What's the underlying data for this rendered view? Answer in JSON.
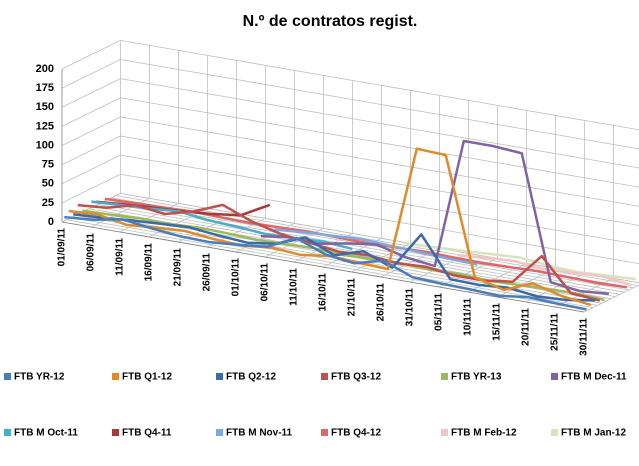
{
  "chart_data": {
    "type": "line",
    "title": "N.º de contratos regist.",
    "categories": [
      "01/09/11",
      "06/09/11",
      "11/09/11",
      "16/09/11",
      "21/09/11",
      "26/09/11",
      "01/10/11",
      "06/10/11",
      "11/10/11",
      "16/10/11",
      "21/10/11",
      "26/10/11",
      "31/10/11",
      "05/11/11",
      "10/11/11",
      "15/11/11",
      "20/11/11",
      "25/11/11",
      "30/11/11"
    ],
    "ylim": [
      0,
      200
    ],
    "yticks": [
      0,
      25,
      50,
      75,
      100,
      125,
      150,
      175,
      200
    ],
    "grid": true,
    "series": [
      {
        "name": "FTB YR-12",
        "color": "#4a7ebb",
        "values": [
          5,
          8,
          15,
          10,
          6,
          5,
          8,
          12,
          30,
          15,
          10,
          20,
          5,
          3,
          2,
          0,
          5,
          3,
          2
        ]
      },
      {
        "name": "FTB Q1-12",
        "color": "#e08a2c",
        "values": [
          10,
          12,
          5,
          8,
          10,
          6,
          4,
          8,
          5,
          10,
          8,
          6,
          170,
          168,
          15,
          5,
          20,
          10,
          5
        ]
      },
      {
        "name": "FTB Q2-12",
        "color": "#3c6aa8",
        "values": [
          3,
          5,
          8,
          10,
          12,
          8,
          5,
          10,
          25,
          8,
          20,
          5,
          55,
          3,
          2,
          5,
          0,
          2,
          8
        ]
      },
      {
        "name": "FTB Q3-12",
        "color": "#c0504d",
        "values": [
          12,
          15,
          25,
          20,
          30,
          45,
          30,
          20,
          15,
          10,
          12,
          8,
          10,
          5,
          5,
          10,
          50,
          8,
          5
        ]
      },
      {
        "name": "FTB YR-13",
        "color": "#9bbb59",
        "values": [
          2,
          3,
          5,
          4,
          6,
          5,
          3,
          4,
          5,
          3,
          4,
          5,
          3,
          4,
          2,
          3,
          4,
          5,
          3
        ]
      },
      {
        "name": "FTB M Dec-11",
        "color": "#8064a2",
        "values": [
          null,
          null,
          null,
          null,
          null,
          null,
          5,
          10,
          8,
          15,
          20,
          10,
          5,
          175,
          175,
          172,
          10,
          5,
          8
        ]
      },
      {
        "name": "FTB M Oct-11",
        "color": "#4bacc6",
        "values": [
          8,
          10,
          12,
          15,
          10,
          8,
          5,
          6,
          8,
          5,
          null,
          null,
          null,
          null,
          null,
          null,
          null,
          null,
          null
        ]
      },
      {
        "name": "FTB Q4-11",
        "color": "#a5383a",
        "values": [
          5,
          8,
          10,
          12,
          15,
          20,
          40,
          null,
          null,
          null,
          null,
          null,
          null,
          null,
          null,
          null,
          null,
          null,
          null
        ]
      },
      {
        "name": "FTB M Nov-11",
        "color": "#7fa8e0",
        "values": [
          null,
          null,
          null,
          null,
          null,
          null,
          5,
          8,
          10,
          12,
          10,
          8,
          6,
          5,
          null,
          null,
          null,
          null,
          null
        ]
      },
      {
        "name": "FTB Q4-12",
        "color": "#e06666",
        "values": [
          3,
          4,
          5,
          6,
          5,
          4,
          5,
          6,
          5,
          4,
          5,
          6,
          5,
          4,
          5,
          6,
          5,
          4,
          5
        ]
      },
      {
        "name": "FTB M Feb-12",
        "color": "#f2c4c4",
        "values": [
          null,
          null,
          null,
          null,
          null,
          null,
          null,
          null,
          null,
          null,
          null,
          null,
          5,
          8,
          10,
          6,
          8,
          10,
          5
        ]
      },
      {
        "name": "FTB M Jan-12",
        "color": "#d7e4bd",
        "values": [
          null,
          null,
          null,
          null,
          null,
          null,
          null,
          null,
          null,
          null,
          5,
          6,
          8,
          10,
          12,
          8,
          6,
          8,
          10
        ]
      }
    ]
  }
}
